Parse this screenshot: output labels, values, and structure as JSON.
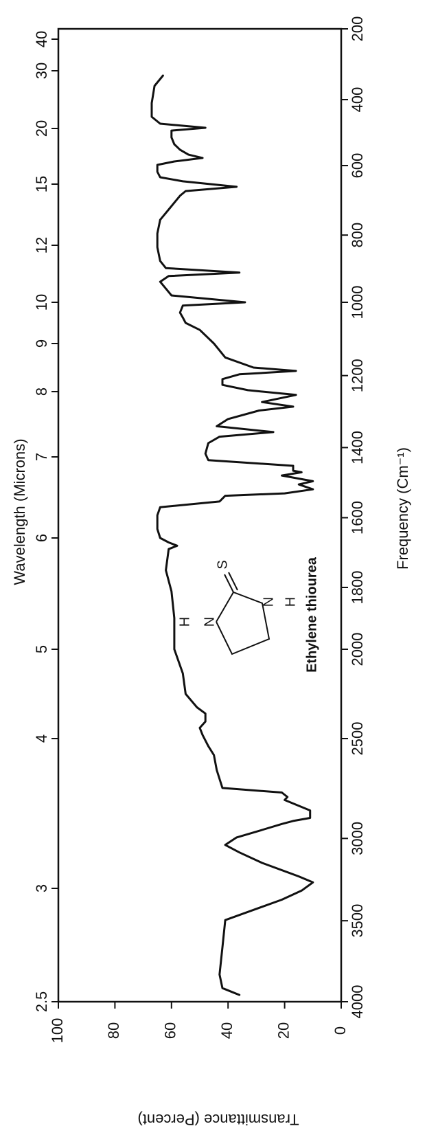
{
  "chart_data": {
    "type": "line",
    "xlabel": "Wavelength (Microns)",
    "x2label": "Frequency (Cm⁻¹)",
    "ylabel": "Transmittance (Percent)",
    "annotation": "Ethylene thiourea",
    "structure": [
      "S",
      "N",
      "H",
      "N",
      "H"
    ],
    "xlim": [
      2.5,
      50
    ],
    "xticks": [
      2.5,
      3,
      4,
      5,
      6,
      7,
      8,
      9,
      10,
      12,
      15,
      20,
      30,
      40
    ],
    "x2ticks": [
      4000,
      3500,
      3000,
      2500,
      2000,
      1800,
      1600,
      1400,
      1200,
      1000,
      800,
      600,
      400,
      200
    ],
    "ylim": [
      0,
      100
    ],
    "yticks": [
      0,
      20,
      40,
      60,
      80,
      100
    ],
    "series": [
      {
        "color": "#111111",
        "x": [
          29.17,
          27.38,
          24.4,
          22.02,
          20.83,
          20.12,
          19.81,
          19.2,
          18.58,
          18.09,
          17.65,
          17.35,
          17.04,
          16.73,
          16.11,
          15.62,
          15.25,
          14.87,
          14.66,
          14.43,
          13.92,
          13.25,
          12.58,
          11.93,
          11.45,
          11.2,
          11.04,
          10.92,
          10.72,
          10.48,
          10.24,
          10.0,
          9.92,
          9.75,
          9.63,
          9.5,
          9.33,
          9.0,
          8.71,
          8.5,
          8.43,
          8.36,
          8.26,
          8.14,
          8.03,
          7.95,
          7.84,
          7.77,
          7.71,
          7.58,
          7.47,
          7.38,
          7.31,
          7.21,
          7.05,
          6.96,
          6.89,
          6.83,
          6.81,
          6.77,
          6.7,
          6.66,
          6.6,
          6.55,
          6.52,
          6.45,
          6.38,
          6.28,
          6.11,
          6.0,
          5.96,
          5.93,
          5.9,
          5.71,
          5.52,
          5.28,
          5.0,
          4.73,
          4.5,
          4.35,
          4.28,
          4.19,
          4.12,
          4.04,
          3.95,
          3.89,
          3.79,
          3.67,
          3.64,
          3.61,
          3.59,
          3.52,
          3.47,
          3.45,
          3.43,
          3.39,
          3.34,
          3.29,
          3.24,
          3.17,
          3.08,
          3.04,
          2.99,
          2.95,
          2.86,
          2.74,
          2.62,
          2.56,
          2.54,
          2.53
        ],
        "values": [
          63,
          66,
          67,
          67,
          64,
          48,
          60,
          60,
          59,
          57,
          54,
          49,
          59,
          65,
          65,
          64,
          56,
          37,
          55,
          57,
          60,
          64,
          65,
          65,
          64,
          62,
          36,
          61,
          64,
          62,
          60,
          34,
          56,
          57,
          56,
          55,
          50,
          45,
          41,
          31,
          16,
          36,
          42,
          42,
          33,
          16,
          28,
          17,
          29,
          40,
          44,
          24,
          43,
          47,
          48,
          47,
          17,
          17,
          14,
          21,
          10,
          15,
          10,
          20,
          41,
          43,
          64,
          65,
          65,
          64,
          61,
          58,
          61,
          62,
          60,
          59,
          59,
          56,
          55,
          51,
          48,
          48,
          50,
          49,
          47,
          45,
          44,
          42,
          21,
          19,
          20,
          11,
          11,
          17,
          21,
          28,
          37,
          41,
          36,
          28,
          15,
          10,
          14,
          21,
          41,
          42,
          43,
          42,
          38,
          36
        ]
      }
    ]
  }
}
